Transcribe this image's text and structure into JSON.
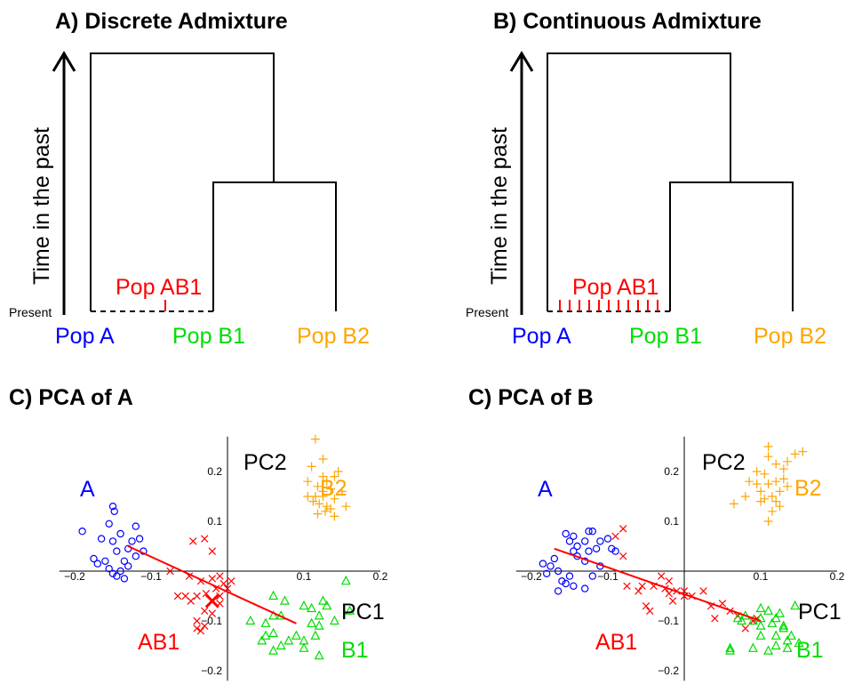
{
  "colors": {
    "A": "#0000ff",
    "B1": "#00dd00",
    "B2": "#ffa500",
    "AB1": "#ff0000",
    "axis": "#000000"
  },
  "panel_a": {
    "title": "A) Discrete Admixture",
    "y_axis": "Time in the past",
    "present": "Present",
    "labels": {
      "pop_a": "Pop A",
      "pop_b1": "Pop B1",
      "pop_b2": "Pop B2",
      "pop_ab1": "Pop AB1"
    }
  },
  "panel_b": {
    "title": "B) Continuous Admixture",
    "y_axis": "Time in the past",
    "present": "Present",
    "labels": {
      "pop_a": "Pop A",
      "pop_b1": "Pop B1",
      "pop_b2": "Pop B2",
      "pop_ab1": "Pop AB1"
    }
  },
  "panel_c": {
    "title": "C) PCA of A",
    "pc1": "PC1",
    "pc2": "PC2",
    "labels": {
      "a": "A",
      "b1": "B1",
      "b2": "B2",
      "ab1": "AB1"
    }
  },
  "panel_d": {
    "title": "C) PCA of B",
    "pc1": "PC1",
    "pc2": "PC2",
    "labels": {
      "a": "A",
      "b1": "B1",
      "b2": "B2",
      "ab1": "AB1"
    }
  },
  "chart_data": [
    {
      "type": "scatter",
      "title": "C) PCA of A",
      "xlabel": "PC1",
      "ylabel": "PC2",
      "xlim": [
        -0.22,
        0.2
      ],
      "ylim": [
        -0.22,
        0.27
      ],
      "x_ticks": [
        -0.2,
        -0.1,
        0.1,
        0.2
      ],
      "y_ticks": [
        -0.2,
        -0.1,
        0.1,
        0.2
      ],
      "x_tick_labels": [
        "−0.2",
        "−0.1",
        "0.1",
        "0.2"
      ],
      "y_tick_labels": [
        "−0.2",
        "−0.1",
        "0.1",
        "0.2"
      ],
      "series": [
        {
          "name": "A",
          "marker": "circle",
          "points": [
            [
              -0.19,
              0.08
            ],
            [
              -0.165,
              0.065
            ],
            [
              -0.155,
              0.095
            ],
            [
              -0.15,
              0.13
            ],
            [
              -0.148,
              0.12
            ],
            [
              -0.14,
              0.075
            ],
            [
              -0.15,
              0.06
            ],
            [
              -0.145,
              0.04
            ],
            [
              -0.13,
              0.045
            ],
            [
              -0.125,
              0.06
            ],
            [
              -0.12,
              0.09
            ],
            [
              -0.115,
              0.065
            ],
            [
              -0.16,
              0.02
            ],
            [
              -0.17,
              0.015
            ],
            [
              -0.155,
              0.005
            ],
            [
              -0.14,
              0.0
            ],
            [
              -0.145,
              -0.01
            ],
            [
              -0.135,
              -0.015
            ],
            [
              -0.15,
              -0.005
            ],
            [
              -0.13,
              0.01
            ],
            [
              -0.175,
              0.025
            ],
            [
              -0.11,
              0.04
            ],
            [
              -0.12,
              0.03
            ],
            [
              -0.135,
              0.02
            ]
          ]
        },
        {
          "name": "B2",
          "marker": "plus",
          "points": [
            [
              0.115,
              0.265
            ],
            [
              0.11,
              0.21
            ],
            [
              0.125,
              0.225
            ],
            [
              0.125,
              0.19
            ],
            [
              0.13,
              0.18
            ],
            [
              0.14,
              0.19
            ],
            [
              0.145,
              0.2
            ],
            [
              0.105,
              0.18
            ],
            [
              0.118,
              0.17
            ],
            [
              0.125,
              0.16
            ],
            [
              0.135,
              0.165
            ],
            [
              0.15,
              0.16
            ],
            [
              0.14,
              0.145
            ],
            [
              0.13,
              0.13
            ],
            [
              0.125,
              0.15
            ],
            [
              0.115,
              0.15
            ],
            [
              0.105,
              0.15
            ],
            [
              0.112,
              0.14
            ],
            [
              0.135,
              0.125
            ],
            [
              0.12,
              0.135
            ],
            [
              0.155,
              0.13
            ],
            [
              0.128,
              0.12
            ],
            [
              0.14,
              0.11
            ],
            [
              0.118,
              0.115
            ]
          ]
        },
        {
          "name": "AB1",
          "marker": "x",
          "points": [
            [
              -0.03,
              0.065
            ],
            [
              -0.045,
              0.06
            ],
            [
              -0.02,
              0.04
            ],
            [
              -0.075,
              0.0
            ],
            [
              -0.05,
              -0.01
            ],
            [
              -0.035,
              -0.02
            ],
            [
              -0.02,
              -0.015
            ],
            [
              -0.01,
              -0.01
            ],
            [
              0.005,
              -0.02
            ],
            [
              -0.005,
              -0.025
            ],
            [
              -0.015,
              -0.035
            ],
            [
              -0.028,
              -0.045
            ],
            [
              -0.04,
              -0.05
            ],
            [
              -0.055,
              -0.05
            ],
            [
              -0.065,
              -0.05
            ],
            [
              -0.048,
              -0.06
            ],
            [
              -0.01,
              -0.05
            ],
            [
              -0.02,
              -0.06
            ],
            [
              -0.01,
              -0.065
            ],
            [
              0.0,
              -0.035
            ],
            [
              -0.03,
              -0.08
            ],
            [
              -0.02,
              -0.085
            ],
            [
              -0.04,
              -0.1
            ],
            [
              -0.03,
              -0.11
            ],
            [
              -0.035,
              -0.12
            ],
            [
              -0.04,
              -0.115
            ]
          ]
        },
        {
          "name": "B1",
          "marker": "triangle",
          "points": [
            [
              0.155,
              -0.02
            ],
            [
              0.06,
              -0.05
            ],
            [
              0.1,
              -0.07
            ],
            [
              0.11,
              -0.075
            ],
            [
              0.125,
              -0.06
            ],
            [
              0.13,
              -0.07
            ],
            [
              0.12,
              -0.09
            ],
            [
              0.06,
              -0.09
            ],
            [
              0.07,
              -0.09
            ],
            [
              0.03,
              -0.1
            ],
            [
              0.05,
              -0.105
            ],
            [
              0.11,
              -0.105
            ],
            [
              0.14,
              -0.1
            ],
            [
              0.06,
              -0.125
            ],
            [
              0.09,
              -0.13
            ],
            [
              0.115,
              -0.13
            ],
            [
              0.12,
              -0.11
            ],
            [
              0.1,
              -0.14
            ],
            [
              0.07,
              -0.15
            ],
            [
              0.08,
              -0.14
            ],
            [
              0.045,
              -0.14
            ],
            [
              0.06,
              -0.16
            ],
            [
              0.12,
              -0.17
            ],
            [
              0.1,
              -0.155
            ],
            [
              0.16,
              -0.08
            ],
            [
              0.075,
              -0.06
            ],
            [
              0.05,
              -0.13
            ]
          ]
        }
      ],
      "fit_line": [
        [
          -0.13,
          0.05
        ],
        [
          0.09,
          -0.105
        ]
      ],
      "mean_marker": {
        "series": "AB1",
        "x": -0.02,
        "y": -0.06
      }
    },
    {
      "type": "scatter",
      "title": "C) PCA of B",
      "xlabel": "PC1",
      "ylabel": "PC2",
      "xlim": [
        -0.22,
        0.2
      ],
      "ylim": [
        -0.22,
        0.27
      ],
      "x_ticks": [
        -0.2,
        -0.1,
        0.1,
        0.2
      ],
      "y_ticks": [
        -0.2,
        -0.1,
        0.1,
        0.2
      ],
      "x_tick_labels": [
        "−0.2",
        "−0.1",
        "0.1",
        "0.2"
      ],
      "y_tick_labels": [
        "−0.2",
        "−0.1",
        "0.1",
        "0.2"
      ],
      "series": [
        {
          "name": "A",
          "marker": "circle",
          "points": [
            [
              -0.185,
              0.015
            ],
            [
              -0.175,
              0.01
            ],
            [
              -0.17,
              0.025
            ],
            [
              -0.165,
              0.0
            ],
            [
              -0.18,
              -0.005
            ],
            [
              -0.16,
              -0.02
            ],
            [
              -0.15,
              -0.01
            ],
            [
              -0.155,
              -0.025
            ],
            [
              -0.145,
              -0.03
            ],
            [
              -0.165,
              -0.04
            ],
            [
              -0.13,
              -0.035
            ],
            [
              -0.12,
              -0.01
            ],
            [
              -0.11,
              0.01
            ],
            [
              -0.13,
              0.02
            ],
            [
              -0.145,
              0.04
            ],
            [
              -0.15,
              0.06
            ],
            [
              -0.155,
              0.075
            ],
            [
              -0.145,
              0.07
            ],
            [
              -0.14,
              0.05
            ],
            [
              -0.13,
              0.06
            ],
            [
              -0.125,
              0.08
            ],
            [
              -0.12,
              0.08
            ],
            [
              -0.11,
              0.06
            ],
            [
              -0.1,
              0.065
            ],
            [
              -0.14,
              0.03
            ],
            [
              -0.125,
              0.04
            ],
            [
              -0.115,
              0.045
            ],
            [
              -0.095,
              0.045
            ],
            [
              -0.09,
              0.04
            ]
          ]
        },
        {
          "name": "B2",
          "marker": "plus",
          "points": [
            [
              0.11,
              0.25
            ],
            [
              0.11,
              0.23
            ],
            [
              0.12,
              0.215
            ],
            [
              0.145,
              0.235
            ],
            [
              0.155,
              0.24
            ],
            [
              0.135,
              0.22
            ],
            [
              0.13,
              0.205
            ],
            [
              0.105,
              0.195
            ],
            [
              0.095,
              0.2
            ],
            [
              0.085,
              0.18
            ],
            [
              0.095,
              0.175
            ],
            [
              0.11,
              0.175
            ],
            [
              0.12,
              0.18
            ],
            [
              0.13,
              0.185
            ],
            [
              0.1,
              0.16
            ],
            [
              0.115,
              0.15
            ],
            [
              0.125,
              0.16
            ],
            [
              0.105,
              0.145
            ],
            [
              0.115,
              0.12
            ],
            [
              0.125,
              0.13
            ],
            [
              0.11,
              0.1
            ],
            [
              0.1,
              0.14
            ],
            [
              0.08,
              0.15
            ],
            [
              0.065,
              0.135
            ],
            [
              0.12,
              0.14
            ],
            [
              0.135,
              0.17
            ]
          ]
        },
        {
          "name": "AB1",
          "marker": "x",
          "points": [
            [
              -0.08,
              0.085
            ],
            [
              -0.09,
              0.07
            ],
            [
              -0.08,
              0.03
            ],
            [
              -0.075,
              -0.03
            ],
            [
              -0.055,
              -0.03
            ],
            [
              -0.06,
              -0.04
            ],
            [
              -0.04,
              -0.03
            ],
            [
              -0.03,
              -0.01
            ],
            [
              -0.02,
              -0.02
            ],
            [
              -0.025,
              -0.035
            ],
            [
              -0.015,
              -0.06
            ],
            [
              -0.05,
              -0.07
            ],
            [
              -0.045,
              -0.08
            ],
            [
              -0.02,
              -0.045
            ],
            [
              -0.01,
              -0.04
            ],
            [
              0.0,
              -0.05
            ],
            [
              0.01,
              -0.05
            ],
            [
              0.025,
              -0.04
            ],
            [
              0.035,
              -0.07
            ],
            [
              0.05,
              -0.065
            ],
            [
              0.06,
              -0.08
            ],
            [
              0.04,
              -0.095
            ],
            [
              0.09,
              -0.1
            ],
            [
              0.095,
              -0.095
            ],
            [
              0.07,
              -0.09
            ],
            [
              0.08,
              -0.115
            ],
            [
              0.0,
              -0.04
            ]
          ]
        },
        {
          "name": "B1",
          "marker": "triangle",
          "points": [
            [
              0.145,
              -0.07
            ],
            [
              0.1,
              -0.075
            ],
            [
              0.11,
              -0.08
            ],
            [
              0.125,
              -0.085
            ],
            [
              0.1,
              -0.095
            ],
            [
              0.12,
              -0.095
            ],
            [
              0.115,
              -0.105
            ],
            [
              0.13,
              -0.11
            ],
            [
              0.07,
              -0.095
            ],
            [
              0.08,
              -0.09
            ],
            [
              0.075,
              -0.1
            ],
            [
              0.09,
              -0.1
            ],
            [
              0.1,
              -0.11
            ],
            [
              0.12,
              -0.13
            ],
            [
              0.13,
              -0.115
            ],
            [
              0.14,
              -0.13
            ],
            [
              0.135,
              -0.14
            ],
            [
              0.06,
              -0.155
            ],
            [
              0.06,
              -0.16
            ],
            [
              0.09,
              -0.155
            ],
            [
              0.11,
              -0.16
            ],
            [
              0.12,
              -0.15
            ],
            [
              0.135,
              -0.155
            ],
            [
              0.15,
              -0.145
            ],
            [
              0.1,
              -0.13
            ]
          ]
        }
      ],
      "fit_line": [
        [
          -0.17,
          0.045
        ],
        [
          0.1,
          -0.1
        ]
      ]
    }
  ]
}
